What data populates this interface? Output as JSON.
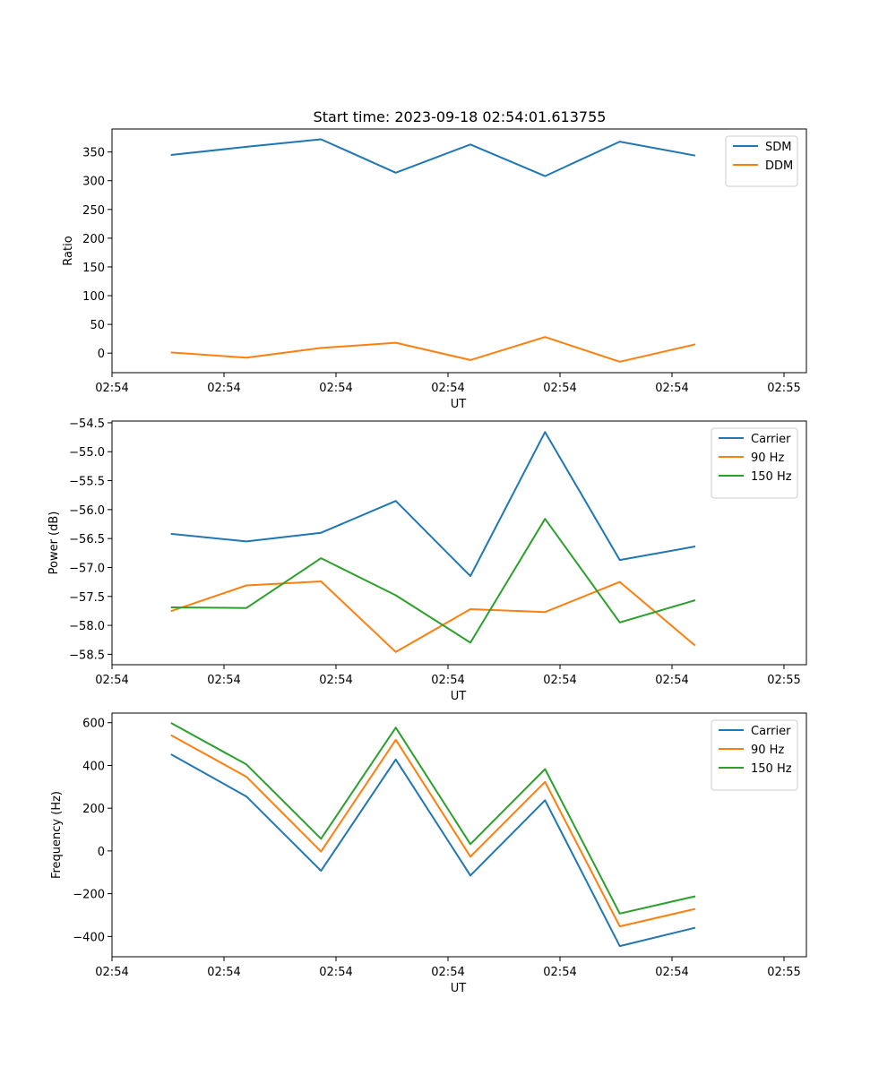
{
  "title": "Start time: 2023-09-18 02:54:01.613755",
  "colors": {
    "blue": "#1f77b4",
    "orange": "#ff7f0e",
    "green": "#2ca02c"
  },
  "chart_data": [
    {
      "type": "line",
      "title": "Start time: 2023-09-18 02:54:01.613755",
      "xlabel": "UT",
      "ylabel": "Ratio",
      "x": [
        1,
        2,
        3,
        4,
        5,
        6,
        7,
        8
      ],
      "xlim": [
        0.2,
        9.5
      ],
      "x_ticks": [
        0.2,
        1.7,
        3.2,
        4.7,
        6.2,
        7.7,
        9.2
      ],
      "x_tick_labels": [
        "02:54",
        "02:54",
        "02:54",
        "02:54",
        "02:54",
        "02:54",
        "02:55"
      ],
      "ylim": [
        -34,
        390
      ],
      "y_ticks": [
        0,
        50,
        100,
        150,
        200,
        250,
        300,
        350
      ],
      "y_tick_labels": [
        "0",
        "50",
        "100",
        "150",
        "200",
        "250",
        "300",
        "350"
      ],
      "legend_position": "top-right",
      "series": [
        {
          "name": "SDM",
          "color": "#1f77b4",
          "values": [
            345,
            359,
            372,
            314,
            363,
            308,
            368,
            344
          ]
        },
        {
          "name": "DDM",
          "color": "#ff7f0e",
          "values": [
            1,
            -8,
            9,
            18,
            -12,
            28,
            -15,
            15
          ]
        }
      ]
    },
    {
      "type": "line",
      "xlabel": "UT",
      "ylabel": "Power (dB)",
      "x": [
        1,
        2,
        3,
        4,
        5,
        6,
        7,
        8
      ],
      "xlim": [
        0.2,
        9.5
      ],
      "x_ticks": [
        0.2,
        1.7,
        3.2,
        4.7,
        6.2,
        7.7,
        9.2
      ],
      "x_tick_labels": [
        "02:54",
        "02:54",
        "02:54",
        "02:54",
        "02:54",
        "02:54",
        "02:55"
      ],
      "ylim": [
        -58.68,
        -54.47
      ],
      "y_ticks": [
        -58.5,
        -58.0,
        -57.5,
        -57.0,
        -56.5,
        -56.0,
        -55.5,
        -55.0,
        -54.5
      ],
      "y_tick_labels": [
        "−58.5",
        "−58.0",
        "−57.5",
        "−57.0",
        "−56.5",
        "−56.0",
        "−55.5",
        "−55.0",
        "−54.5"
      ],
      "legend_position": "top-right",
      "series": [
        {
          "name": "Carrier",
          "color": "#1f77b4",
          "values": [
            -56.42,
            -56.55,
            -56.4,
            -55.85,
            -57.15,
            -54.66,
            -56.87,
            -56.64
          ]
        },
        {
          "name": "90 Hz",
          "color": "#ff7f0e",
          "values": [
            -57.75,
            -57.31,
            -57.24,
            -58.46,
            -57.72,
            -57.77,
            -57.25,
            -58.34
          ]
        },
        {
          "name": "150 Hz",
          "color": "#2ca02c",
          "values": [
            -57.69,
            -57.7,
            -56.84,
            -57.48,
            -58.3,
            -56.16,
            -57.95,
            -57.57
          ]
        }
      ]
    },
    {
      "type": "line",
      "xlabel": "UT",
      "ylabel": "Frequency (Hz)",
      "x": [
        1,
        2,
        3,
        4,
        5,
        6,
        7,
        8
      ],
      "xlim": [
        0.2,
        9.5
      ],
      "x_ticks": [
        0.2,
        1.7,
        3.2,
        4.7,
        6.2,
        7.7,
        9.2
      ],
      "x_tick_labels": [
        "02:54",
        "02:54",
        "02:54",
        "02:54",
        "02:54",
        "02:54",
        "02:55"
      ],
      "ylim": [
        -495,
        645
      ],
      "y_ticks": [
        -400,
        -200,
        0,
        200,
        400,
        600
      ],
      "y_tick_labels": [
        "−400",
        "−200",
        "0",
        "200",
        "400",
        "600"
      ],
      "legend_position": "top-right",
      "series": [
        {
          "name": "Carrier",
          "color": "#1f77b4",
          "values": [
            450,
            255,
            -93,
            428,
            -115,
            237,
            -445,
            -360
          ]
        },
        {
          "name": "90 Hz",
          "color": "#ff7f0e",
          "values": [
            540,
            347,
            -3,
            520,
            -27,
            323,
            -353,
            -272
          ]
        },
        {
          "name": "150 Hz",
          "color": "#2ca02c",
          "values": [
            597,
            405,
            57,
            577,
            32,
            383,
            -293,
            -213
          ]
        }
      ]
    }
  ]
}
